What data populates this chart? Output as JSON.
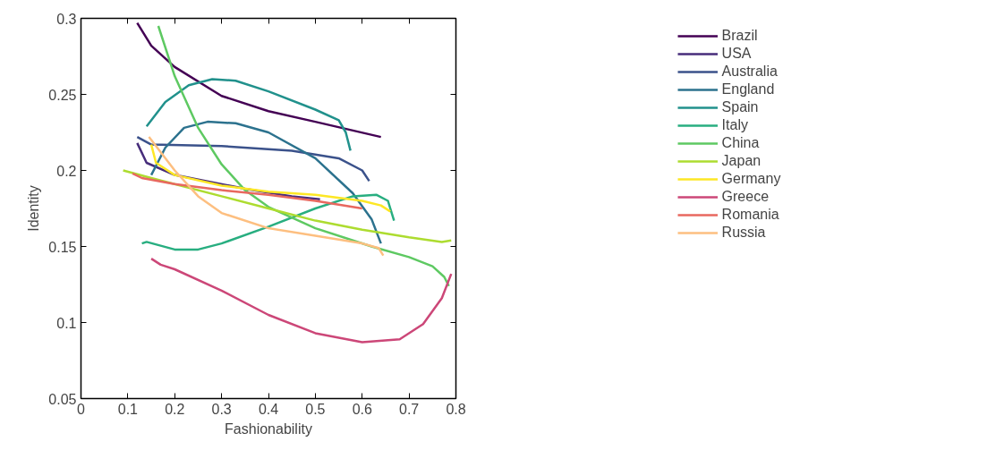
{
  "chart_data": {
    "type": "line",
    "xlabel": "Fashionability",
    "ylabel": "Identity",
    "xlim": [
      0,
      0.8
    ],
    "ylim": [
      0.05,
      0.3
    ],
    "xticks": [
      0,
      0.1,
      0.2,
      0.3,
      0.4,
      0.5,
      0.6,
      0.7,
      0.8
    ],
    "yticks": [
      0.05,
      0.1,
      0.15,
      0.2,
      0.25,
      0.3
    ],
    "grid": false,
    "legend": "right",
    "line_style": "solid",
    "marker": "none",
    "series": [
      {
        "name": "Brazil",
        "color": "#440154",
        "x": [
          0.12,
          0.15,
          0.2,
          0.3,
          0.4,
          0.5,
          0.64
        ],
        "values": [
          0.297,
          0.282,
          0.268,
          0.249,
          0.239,
          0.232,
          0.222
        ]
      },
      {
        "name": "USA",
        "color": "#472d7b",
        "x": [
          0.12,
          0.14,
          0.2,
          0.35,
          0.45,
          0.51
        ],
        "values": [
          0.218,
          0.205,
          0.197,
          0.188,
          0.183,
          0.181
        ]
      },
      {
        "name": "Australia",
        "color": "#3b528b",
        "x": [
          0.12,
          0.15,
          0.3,
          0.45,
          0.55,
          0.6,
          0.615
        ],
        "values": [
          0.222,
          0.217,
          0.216,
          0.213,
          0.208,
          0.2,
          0.193
        ]
      },
      {
        "name": "England",
        "color": "#2c728e",
        "x": [
          0.15,
          0.18,
          0.22,
          0.27,
          0.33,
          0.4,
          0.5,
          0.58,
          0.62,
          0.64
        ],
        "values": [
          0.197,
          0.215,
          0.228,
          0.232,
          0.231,
          0.225,
          0.208,
          0.185,
          0.168,
          0.152
        ]
      },
      {
        "name": "Spain",
        "color": "#21918c",
        "x": [
          0.14,
          0.18,
          0.23,
          0.28,
          0.33,
          0.4,
          0.5,
          0.55,
          0.565,
          0.575
        ],
        "values": [
          0.229,
          0.245,
          0.256,
          0.26,
          0.259,
          0.252,
          0.24,
          0.233,
          0.225,
          0.213
        ]
      },
      {
        "name": "Italy",
        "color": "#28ae80",
        "x": [
          0.13,
          0.14,
          0.2,
          0.25,
          0.3,
          0.4,
          0.5,
          0.58,
          0.63,
          0.655,
          0.668
        ],
        "values": [
          0.152,
          0.153,
          0.148,
          0.148,
          0.152,
          0.163,
          0.175,
          0.183,
          0.184,
          0.18,
          0.167
        ]
      },
      {
        "name": "China",
        "color": "#5ec962",
        "x": [
          0.165,
          0.2,
          0.25,
          0.3,
          0.35,
          0.4,
          0.5,
          0.62,
          0.7,
          0.75,
          0.775,
          0.785
        ],
        "values": [
          0.295,
          0.262,
          0.228,
          0.204,
          0.187,
          0.176,
          0.162,
          0.15,
          0.143,
          0.137,
          0.13,
          0.124
        ]
      },
      {
        "name": "Japan",
        "color": "#addc30",
        "x": [
          0.09,
          0.15,
          0.3,
          0.4,
          0.5,
          0.6,
          0.7,
          0.77,
          0.79
        ],
        "values": [
          0.2,
          0.195,
          0.183,
          0.175,
          0.167,
          0.161,
          0.156,
          0.153,
          0.154
        ]
      },
      {
        "name": "Germany",
        "color": "#fde725",
        "x": [
          0.15,
          0.16,
          0.2,
          0.3,
          0.4,
          0.5,
          0.6,
          0.64,
          0.66
        ],
        "values": [
          0.217,
          0.205,
          0.197,
          0.19,
          0.186,
          0.184,
          0.18,
          0.177,
          0.173
        ]
      },
      {
        "name": "Greece",
        "color": "#cc4778",
        "x": [
          0.15,
          0.17,
          0.2,
          0.3,
          0.4,
          0.5,
          0.6,
          0.68,
          0.73,
          0.77,
          0.79
        ],
        "values": [
          0.142,
          0.138,
          0.135,
          0.121,
          0.105,
          0.093,
          0.087,
          0.089,
          0.099,
          0.116,
          0.132
        ]
      },
      {
        "name": "Romania",
        "color": "#e8685f",
        "x": [
          0.11,
          0.13,
          0.2,
          0.3,
          0.4,
          0.5,
          0.6
        ],
        "values": [
          0.198,
          0.195,
          0.191,
          0.187,
          0.184,
          0.18,
          0.175
        ]
      },
      {
        "name": "Russia",
        "color": "#fdbf80",
        "x": [
          0.145,
          0.2,
          0.25,
          0.3,
          0.4,
          0.5,
          0.6,
          0.635,
          0.645
        ],
        "values": [
          0.222,
          0.2,
          0.183,
          0.172,
          0.162,
          0.157,
          0.152,
          0.149,
          0.144
        ]
      }
    ]
  }
}
